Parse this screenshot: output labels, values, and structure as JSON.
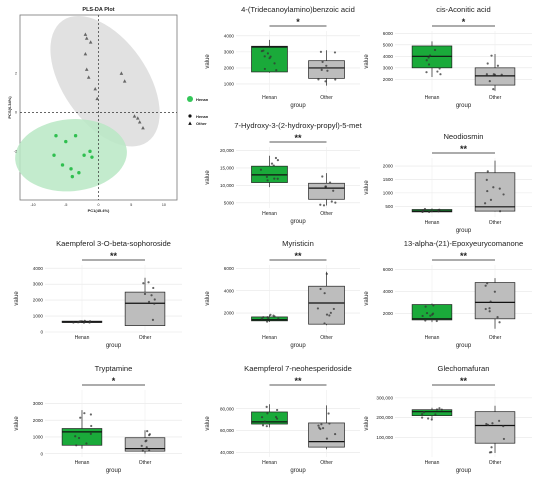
{
  "pls": {
    "title": "PLS-DA Plot",
    "xlabel": "PC1(45.4%)",
    "ylabel": "PCS(0.34%)",
    "xticks": [
      -10,
      -5,
      0,
      5,
      10
    ],
    "yticks": [
      2,
      0,
      -2
    ],
    "legend": [
      {
        "label": "Henan",
        "marker": "circle",
        "color": "#34c759"
      },
      {
        "label": "Henan",
        "marker": "dot",
        "color": "#111111"
      },
      {
        "label": "Other",
        "marker": "triangle",
        "color": "#111111"
      }
    ]
  },
  "colors": {
    "henan": "#1aaa3a",
    "other": "#bdbdbd",
    "henan_ellipse": "#b9e8c4",
    "other_ellipse": "#dcdcdc"
  },
  "chart_data": [
    {
      "type": "scatter",
      "title": "PLS-DA Plot",
      "xlabel": "PC1(45.4%)",
      "ylabel": "PCS(0.34%)",
      "series": [
        {
          "name": "Henan",
          "points": [
            [
              -6.5,
              -1.2
            ],
            [
              -5,
              -1.5
            ],
            [
              -3.5,
              -1.2
            ],
            [
              -6.8,
              -2.2
            ],
            [
              -5.5,
              -2.7
            ],
            [
              -4.2,
              -2.9
            ],
            [
              -2.2,
              -2.2
            ],
            [
              -1.3,
              -2.0
            ],
            [
              -1.0,
              -2.3
            ],
            [
              -3.0,
              -3.1
            ],
            [
              -4.0,
              -3.3
            ]
          ]
        },
        {
          "name": "Other",
          "points": [
            [
              -2.0,
              4.0
            ],
            [
              -1.8,
              3.8
            ],
            [
              -1.2,
              3.6
            ],
            [
              -2.0,
              3.0
            ],
            [
              -1.8,
              2.2
            ],
            [
              -1.5,
              1.8
            ],
            [
              -0.5,
              1.2
            ],
            [
              -0.2,
              0.7
            ],
            [
              3.5,
              2.0
            ],
            [
              4.0,
              1.6
            ],
            [
              5.5,
              -0.2
            ],
            [
              6.0,
              -0.3
            ],
            [
              6.3,
              -0.5
            ],
            [
              6.8,
              -0.8
            ]
          ]
        }
      ]
    },
    {
      "type": "box",
      "title": "4-(Tridecanoylamino)benzoic acid",
      "xlabel": "group",
      "ylabel": "value",
      "categories": [
        "Henan",
        "Other"
      ],
      "ylim": [
        500,
        4300
      ],
      "yticks": [
        1000,
        2000,
        3000,
        4000
      ],
      "sig": "*",
      "boxes": [
        {
          "min": 1700,
          "q1": 1750,
          "median": 3300,
          "q3": 3350,
          "max": 3750
        },
        {
          "min": 900,
          "q1": 1350,
          "median": 2000,
          "q3": 2450,
          "max": 3100
        }
      ]
    },
    {
      "type": "box",
      "title": "cis-Aconitic acid",
      "xlabel": "group",
      "ylabel": "value",
      "categories": [
        "Henan",
        "Other"
      ],
      "ylim": [
        900,
        6200
      ],
      "yticks": [
        2000,
        3000,
        4000,
        5000,
        6000
      ],
      "sig": "*",
      "boxes": [
        {
          "min": 2200,
          "q1": 3000,
          "median": 4000,
          "q3": 4900,
          "max": 5300
        },
        {
          "min": 1000,
          "q1": 1500,
          "median": 2300,
          "q3": 3000,
          "max": 4200
        }
      ]
    },
    {
      "type": "box",
      "title": "7-Hydroxy-3-(2-hydroxy-propyl)-5-met",
      "xlabel": "group",
      "ylabel": "value",
      "categories": [
        "Henan",
        "Other"
      ],
      "ylim": [
        3500,
        21000
      ],
      "yticks": [
        5000,
        10000,
        15000,
        20000
      ],
      "sig": "**",
      "boxes": [
        {
          "min": 9500,
          "q1": 10800,
          "median": 13000,
          "q3": 15500,
          "max": 18500
        },
        {
          "min": 4200,
          "q1": 6000,
          "median": 9200,
          "q3": 10600,
          "max": 13500
        }
      ]
    },
    {
      "type": "box",
      "title": "Neodiosmin",
      "xlabel": "group",
      "ylabel": "value",
      "categories": [
        "Henan",
        "Other"
      ],
      "ylim": [
        100,
        2300
      ],
      "yticks": [
        500,
        1000,
        1500,
        2000
      ],
      "sig": "**",
      "boxes": [
        {
          "min": 280,
          "q1": 290,
          "median": 320,
          "q3": 380,
          "max": 420
        },
        {
          "min": 300,
          "q1": 320,
          "median": 480,
          "q3": 1750,
          "max": 2200
        }
      ]
    },
    {
      "type": "box",
      "title": "Kaempferol 3-O-beta-sophoroside",
      "xlabel": "group",
      "ylabel": "value",
      "categories": [
        "Henan",
        "Other"
      ],
      "ylim": [
        0,
        4200
      ],
      "yticks": [
        0,
        1000,
        2000,
        3000,
        4000
      ],
      "sig": "**",
      "boxes": [
        {
          "min": 580,
          "q1": 600,
          "median": 620,
          "q3": 680,
          "max": 750
        },
        {
          "min": 400,
          "q1": 400,
          "median": 1800,
          "q3": 2500,
          "max": 3400
        }
      ]
    },
    {
      "type": "box",
      "title": "Myristicin",
      "xlabel": "group",
      "ylabel": "value",
      "categories": [
        "Henan",
        "Other"
      ],
      "ylim": [
        300,
        6300
      ],
      "yticks": [
        2000,
        4000,
        6000
      ],
      "sig": "**",
      "boxes": [
        {
          "min": 1200,
          "q1": 1300,
          "median": 1400,
          "q3": 1650,
          "max": 1850
        },
        {
          "min": 900,
          "q1": 1000,
          "median": 2900,
          "q3": 4400,
          "max": 5700
        }
      ]
    },
    {
      "type": "box",
      "title": "13-alpha-(21)-Epoxyeurycomanone",
      "xlabel": "group",
      "ylabel": "value",
      "categories": [
        "Henan",
        "Other"
      ],
      "ylim": [
        300,
        6400
      ],
      "yticks": [
        2000,
        4000,
        6000
      ],
      "sig": "**",
      "boxes": [
        {
          "min": 1200,
          "q1": 1400,
          "median": 1500,
          "q3": 2800,
          "max": 2900
        },
        {
          "min": 600,
          "q1": 1500,
          "median": 3000,
          "q3": 4800,
          "max": 5200
        }
      ]
    },
    {
      "type": "box",
      "title": "Tryptamine",
      "xlabel": "group",
      "ylabel": "value",
      "categories": [
        "Henan",
        "Other"
      ],
      "ylim": [
        -200,
        3800
      ],
      "yticks": [
        0,
        1000,
        2000,
        3000
      ],
      "sig": "*",
      "boxes": [
        {
          "min": 300,
          "q1": 500,
          "median": 1300,
          "q3": 1500,
          "max": 2600
        },
        {
          "min": 0,
          "q1": 150,
          "median": 300,
          "q3": 950,
          "max": 1400
        }
      ]
    },
    {
      "type": "box",
      "title": "Kaempferol 7-neohesperidoside",
      "xlabel": "group",
      "ylabel": "value",
      "categories": [
        "Henan",
        "Other"
      ],
      "ylim": [
        36000,
        97000
      ],
      "yticks": [
        40000,
        60000,
        80000
      ],
      "sig": "**",
      "boxes": [
        {
          "min": 63000,
          "q1": 66000,
          "median": 68000,
          "q3": 77000,
          "max": 84000
        },
        {
          "min": 43000,
          "q1": 45000,
          "median": 50000,
          "q3": 67000,
          "max": 83000
        }
      ]
    },
    {
      "type": "box",
      "title": "Glechomafuran",
      "xlabel": "group",
      "ylabel": "value",
      "categories": [
        "Henan",
        "Other"
      ],
      "ylim": [
        0,
        340000
      ],
      "yticks": [
        100000,
        200000,
        300000
      ],
      "sig": "**",
      "boxes": [
        {
          "min": 190000,
          "q1": 210000,
          "median": 230000,
          "q3": 240000,
          "max": 250000
        },
        {
          "min": 20000,
          "q1": 70000,
          "median": 160000,
          "q3": 230000,
          "max": 260000
        }
      ]
    }
  ]
}
